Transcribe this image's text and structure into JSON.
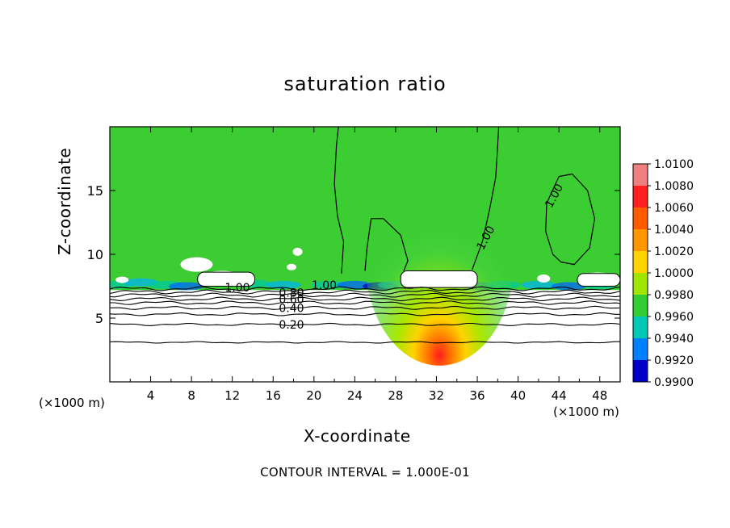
{
  "chart_data": {
    "type": "heatmap",
    "title": "saturation ratio",
    "xlabel": "X-coordinate",
    "ylabel": "Z-coordinate",
    "x_unit_left": "(×1000 m)",
    "x_unit_right": "(×1000 m)",
    "xlim": [
      0,
      50
    ],
    "ylim": [
      0,
      20
    ],
    "x_ticks": [
      "4",
      "8",
      "12",
      "16",
      "20",
      "24",
      "28",
      "32",
      "36",
      "40",
      "44",
      "48"
    ],
    "x_tick_values": [
      4,
      8,
      12,
      16,
      20,
      24,
      28,
      32,
      36,
      40,
      44,
      48
    ],
    "y_ticks": [
      "5",
      "10",
      "15"
    ],
    "y_tick_values": [
      5,
      10,
      15
    ],
    "colorbar": {
      "labels": [
        "1.0100",
        "1.0080",
        "1.0060",
        "1.0040",
        "1.0020",
        "1.0000",
        "0.9980",
        "0.9960",
        "0.9940",
        "0.9920",
        "0.9900"
      ],
      "values": [
        1.01,
        1.008,
        1.006,
        1.004,
        1.002,
        1.0,
        0.998,
        0.996,
        0.994,
        0.992,
        0.99
      ],
      "colors": [
        "#f08080",
        "#ff2020",
        "#ff5a00",
        "#ff9600",
        "#ffd200",
        "#a0e600",
        "#32cd32",
        "#00c8b4",
        "#0080ff",
        "#0000c8",
        "#7800c8"
      ]
    },
    "contour_labels": [
      {
        "text": "0.20",
        "value": 0.2,
        "x": 17.8,
        "z": 4.5
      },
      {
        "text": "0.40",
        "value": 0.4,
        "x": 17.8,
        "z": 5.8
      },
      {
        "text": "0.60",
        "value": 0.6,
        "x": 17.8,
        "z": 6.5
      },
      {
        "text": "0.80",
        "value": 0.8,
        "x": 17.8,
        "z": 7.0
      },
      {
        "text": "1.00",
        "value": 1.0,
        "x": 12.5,
        "z": 7.4
      },
      {
        "text": "1.00",
        "value": 1.0,
        "x": 21.0,
        "z": 7.6
      },
      {
        "text": "1.00",
        "value": 1.0,
        "x": 36.8,
        "z": 11.3
      },
      {
        "text": "1.00",
        "value": 1.0,
        "x": 43.5,
        "z": 14.6
      }
    ],
    "footer": "CONTOUR INTERVAL = 1.000E-01",
    "contour_interval": 0.1,
    "grid": false,
    "legend": "right colorbar"
  }
}
